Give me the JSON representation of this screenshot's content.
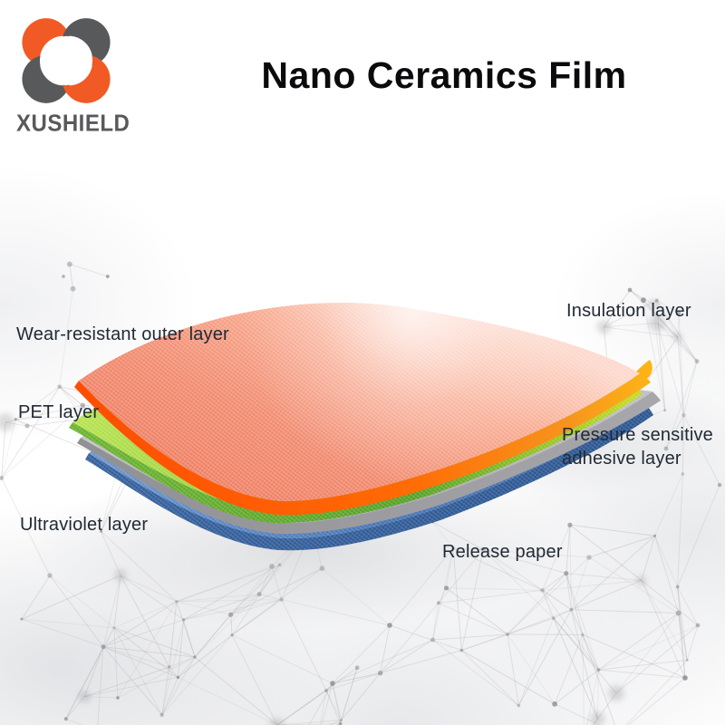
{
  "header": {
    "logo": {
      "brand": "XUSHIELD"
    },
    "title": "Nano Ceramics Film"
  },
  "palette": {
    "brand_orange": "#F15A24",
    "brand_gray": "#58595B",
    "film_top_salmon": "#F4997F",
    "film_orange_edge": "#FF6205",
    "film_green": "#8CC63F",
    "film_gray": "#A5A5A8",
    "film_blue": "#4675B4",
    "label_text": "#222A35"
  },
  "diagram": {
    "labels": {
      "wear": "Wear-resistant outer layer",
      "pet": "PET layer",
      "uv": "Ultraviolet layer",
      "insulation": "Insulation layer",
      "adhesive": "Pressure sensitive adhesive layer",
      "release": "Release paper"
    }
  }
}
